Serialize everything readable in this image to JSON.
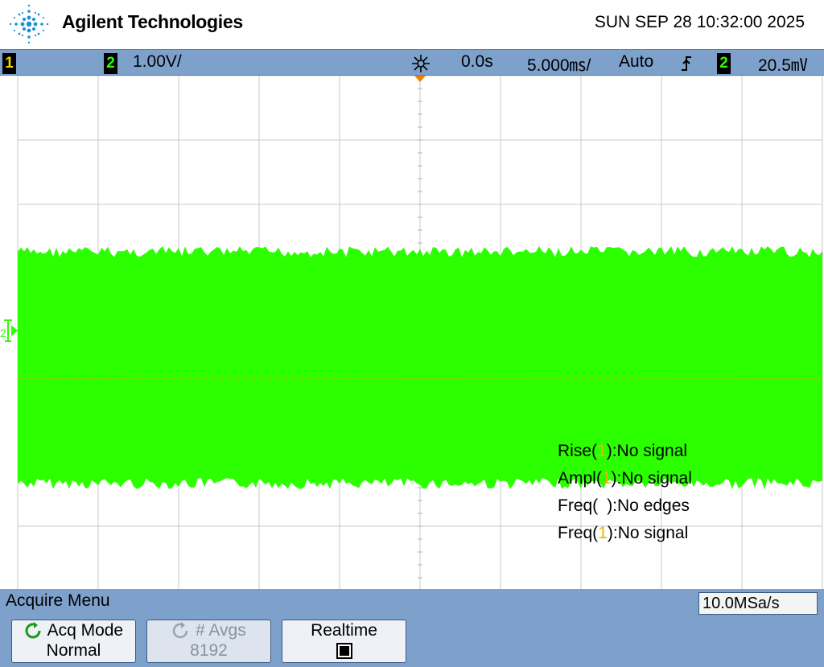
{
  "header": {
    "brand": "Agilent Technologies",
    "datetime": "SUN SEP 28 10:32:00 2025"
  },
  "status": {
    "ch1_label": "1",
    "ch2_label": "2",
    "ch2_scale": "1.00V/",
    "time_delay": "0.0s",
    "time_scale": "5.000㎳/",
    "trigger_mode": "Auto",
    "trigger_source": "2",
    "trigger_level": "20.5㎷",
    "colors": {
      "ch1": "#f2d500",
      "ch2": "#2bff00",
      "trigger": "#f08000"
    }
  },
  "display": {
    "ch2_marker": "2",
    "waveform_color": "#2bff00",
    "measurements": [
      {
        "name": "Rise(",
        "ch": "1",
        "tail": "):No signal"
      },
      {
        "name": "Ampl(",
        "ch": "1",
        "tail": "):No signal"
      },
      {
        "name": "Freq(",
        "ch": "",
        "tail": "):No edges"
      },
      {
        "name": "Freq(",
        "ch": "1",
        "tail": "):No signal"
      }
    ]
  },
  "menu": {
    "title": "Acquire Menu",
    "sample_rate": "10.0MSa/s",
    "softkeys": [
      {
        "line1": "Acq Mode",
        "line2": "Normal",
        "icon": "rotate-knob-icon"
      },
      {
        "line1": "# Avgs",
        "line2": "8192",
        "icon": "rotate-knob-icon"
      },
      {
        "line1": "Realtime",
        "icon": "checkbox-icon"
      }
    ]
  }
}
